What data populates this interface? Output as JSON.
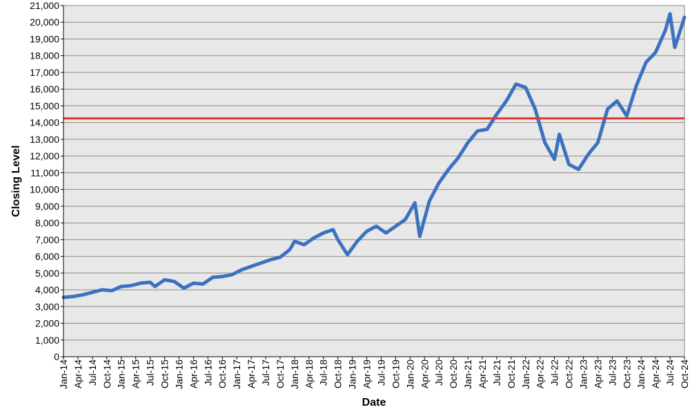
{
  "chart_data": {
    "type": "line",
    "title": "",
    "xlabel": "Date",
    "ylabel": "Closing Level",
    "ylim": [
      0,
      21000
    ],
    "ytick_step": 1000,
    "xlim": [
      "2014-01",
      "2024-10"
    ],
    "x_tick_labels": [
      "Jan-14",
      "Apr-14",
      "Jul-14",
      "Oct-14",
      "Jan-15",
      "Apr-15",
      "Jul-15",
      "Oct-15",
      "Jan-16",
      "Apr-16",
      "Jul-16",
      "Oct-16",
      "Jan-17",
      "Apr-17",
      "Jul-17",
      "Oct-17",
      "Jan-18",
      "Apr-18",
      "Jul-18",
      "Oct-18",
      "Jan-19",
      "Apr-19",
      "Jul-19",
      "Oct-19",
      "Jan-20",
      "Apr-20",
      "Jul-20",
      "Oct-20",
      "Jan-21",
      "Apr-21",
      "Jul-21",
      "Oct-21",
      "Jan-22",
      "Apr-22",
      "Jul-22",
      "Oct-22",
      "Jan-23",
      "Apr-23",
      "Jul-23",
      "Oct-23",
      "Jan-24",
      "Apr-24",
      "Jul-24",
      "Oct-24"
    ],
    "grid": true,
    "background": "#e8e8e8",
    "series": [
      {
        "color": "#3b72c0",
        "x": [
          "2014-01",
          "2014-03",
          "2014-05",
          "2014-07",
          "2014-09",
          "2014-11",
          "2015-01",
          "2015-03",
          "2015-05",
          "2015-07",
          "2015-08",
          "2015-10",
          "2015-12",
          "2016-02",
          "2016-04",
          "2016-06",
          "2016-08",
          "2016-10",
          "2016-12",
          "2017-02",
          "2017-04",
          "2017-06",
          "2017-08",
          "2017-10",
          "2017-12",
          "2018-01",
          "2018-03",
          "2018-05",
          "2018-07",
          "2018-09",
          "2018-10",
          "2018-12",
          "2019-02",
          "2019-04",
          "2019-06",
          "2019-08",
          "2019-10",
          "2019-12",
          "2020-02",
          "2020-03",
          "2020-05",
          "2020-07",
          "2020-09",
          "2020-11",
          "2021-01",
          "2021-03",
          "2021-05",
          "2021-07",
          "2021-09",
          "2021-11",
          "2022-01",
          "2022-03",
          "2022-05",
          "2022-07",
          "2022-08",
          "2022-10",
          "2022-12",
          "2023-02",
          "2023-04",
          "2023-06",
          "2023-08",
          "2023-10",
          "2023-12",
          "2024-02",
          "2024-04",
          "2024-06",
          "2024-07",
          "2024-08",
          "2024-10"
        ],
        "y": [
          3550,
          3600,
          3700,
          3850,
          4000,
          3950,
          4200,
          4250,
          4400,
          4450,
          4200,
          4600,
          4500,
          4100,
          4400,
          4350,
          4750,
          4800,
          4900,
          5200,
          5400,
          5600,
          5800,
          5950,
          6400,
          6900,
          6700,
          7100,
          7400,
          7600,
          7000,
          6100,
          6900,
          7500,
          7800,
          7400,
          7800,
          8200,
          9200,
          7200,
          9300,
          10400,
          11200,
          11900,
          12800,
          13500,
          13600,
          14500,
          15300,
          16300,
          16100,
          14800,
          12800,
          11800,
          13300,
          11500,
          11200,
          12100,
          12800,
          14800,
          15300,
          14400,
          16200,
          17600,
          18200,
          19500,
          20500,
          18500,
          20300
        ]
      },
      {
        "color": "#e8312d",
        "constant_y": 14250
      }
    ]
  }
}
